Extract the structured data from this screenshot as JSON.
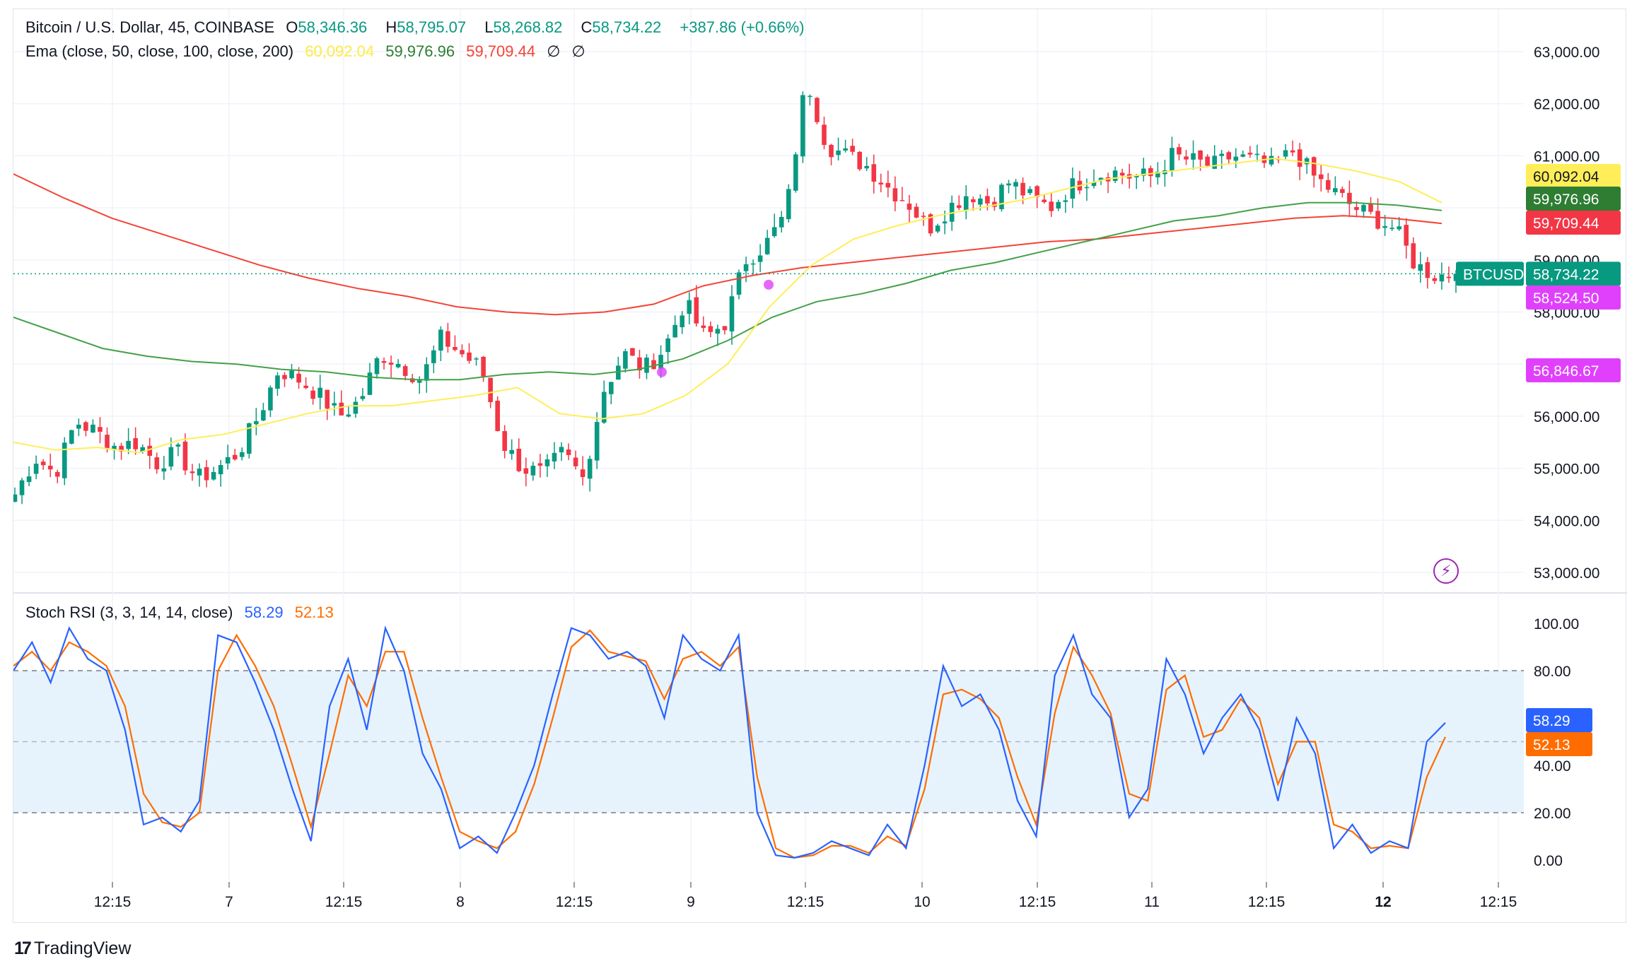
{
  "legend": {
    "symbol": "Bitcoin / U.S. Dollar, 45, COINBASE",
    "o_label": "O",
    "o_value": "58,346.36",
    "h_label": "H",
    "h_value": "58,795.07",
    "l_label": "L",
    "l_value": "58,268.82",
    "c_label": "C",
    "c_value": "58,734.22",
    "change": "+387.86 (+0.66%)",
    "ema_label": "Ema (close, 50, close, 100, close, 200)",
    "ema50_value": "60,092.04",
    "ema100_value": "59,976.96",
    "ema200_value": "59,709.44",
    "null1": "∅",
    "null2": "∅",
    "stoch_label": "Stoch RSI (3, 3, 14, 14, close)",
    "stoch_k_value": "58.29",
    "stoch_d_value": "52.13"
  },
  "branding": {
    "logo_text": "TradingView",
    "logo_mark": "17"
  },
  "colors": {
    "up": "#089981",
    "down": "#f23645",
    "ema50": "#ffee58",
    "ema100": "#43a047",
    "ema200": "#f44336",
    "stoch_k": "#2962ff",
    "stoch_d": "#ff6d00",
    "marker": "#e040fb",
    "band": "#e3f2fd"
  },
  "chart_data": [
    {
      "type": "candlestick",
      "title": "Bitcoin / U.S. Dollar, 45, COINBASE",
      "ylim": [
        52700,
        63300
      ],
      "y_ticks": [
        "63,000.00",
        "62,000.00",
        "61,000.00",
        "60,000.00",
        "59,000.00",
        "58,000.00",
        "57,000.00",
        "56,000.00",
        "55,000.00",
        "54,000.00",
        "53,000.00"
      ],
      "x_ticks": [
        "12:15",
        "7",
        "12:15",
        "8",
        "12:15",
        "9",
        "12:15",
        "10",
        "12:15",
        "11",
        "12:15",
        "12",
        "12:15"
      ],
      "x_ticks_bold": [
        "12"
      ],
      "close_anchors": [
        54500,
        55200,
        54900,
        55900,
        55700,
        55400,
        55500,
        55100,
        55300,
        54800,
        55000,
        55300,
        56000,
        56900,
        56700,
        56400,
        56000,
        56300,
        57200,
        57000,
        56700,
        57500,
        57200,
        56900,
        55500,
        55000,
        54900,
        55300,
        54800,
        56500,
        57200,
        56900,
        57300,
        58200,
        57500,
        57800,
        59000,
        59300,
        59900,
        62500,
        61200,
        61000,
        60800,
        60400,
        60100,
        59600,
        60000,
        60300,
        60100,
        60500,
        60200,
        60000,
        60400,
        60600,
        60700,
        60600,
        60600,
        61000,
        60900,
        60800,
        61000,
        60900,
        60800,
        61100,
        60600,
        60300,
        60000,
        59800,
        59600,
        58900,
        58700,
        58734
      ],
      "last_price_label": "BTCUSD",
      "last_price": "58,734.22",
      "marker_label": "58,524.50",
      "marker_label2": "56,846.67",
      "ema50": [
        55500,
        55350,
        55400,
        55300,
        55550,
        55650,
        55850,
        56050,
        56200,
        56200,
        56300,
        56400,
        56550,
        56050,
        55950,
        56050,
        56400,
        57000,
        58100,
        58900,
        59400,
        59650,
        59850,
        60000,
        60150,
        60350,
        60550,
        60650,
        60750,
        60850,
        60950,
        60850,
        60700,
        60500,
        60100
      ],
      "ema100": [
        57900,
        57600,
        57300,
        57150,
        57050,
        57000,
        56900,
        56850,
        56750,
        56700,
        56700,
        56800,
        56850,
        56800,
        56900,
        57100,
        57450,
        57900,
        58200,
        58350,
        58550,
        58800,
        58950,
        59150,
        59350,
        59550,
        59750,
        59850,
        60000,
        60100,
        60100,
        60050,
        59950
      ],
      "ema200": [
        60650,
        60200,
        59800,
        59500,
        59200,
        58900,
        58650,
        58450,
        58300,
        58100,
        58000,
        57950,
        58000,
        58150,
        58500,
        58700,
        58850,
        58950,
        59050,
        59150,
        59250,
        59350,
        59400,
        59500,
        59600,
        59700,
        59800,
        59850,
        59800,
        59700
      ]
    },
    {
      "type": "line",
      "title": "Stoch RSI (3, 3, 14, 14, close)",
      "ylim": [
        -8,
        108
      ],
      "y_ticks": [
        "100.00",
        "80.00",
        "40.00",
        "20.00",
        "0.00"
      ],
      "bands": [
        20,
        50,
        80
      ],
      "series": [
        {
          "name": "58.29",
          "values": [
            80,
            92,
            75,
            98,
            85,
            80,
            55,
            15,
            18,
            12,
            25,
            95,
            92,
            75,
            55,
            30,
            8,
            65,
            85,
            55,
            98,
            80,
            45,
            30,
            5,
            10,
            3,
            20,
            40,
            70,
            98,
            95,
            85,
            88,
            82,
            60,
            95,
            85,
            80,
            95,
            20,
            2,
            1,
            3,
            8,
            5,
            2,
            15,
            5,
            40,
            82,
            65,
            70,
            55,
            25,
            10,
            78,
            95,
            70,
            60,
            18,
            30,
            85,
            70,
            45,
            60,
            70,
            55,
            25,
            60,
            45,
            5,
            15,
            3,
            8,
            5,
            50,
            58
          ]
        },
        {
          "name": "52.13",
          "values": [
            82,
            88,
            80,
            92,
            88,
            82,
            65,
            28,
            16,
            14,
            20,
            80,
            95,
            82,
            65,
            40,
            14,
            45,
            78,
            65,
            88,
            88,
            60,
            35,
            12,
            8,
            5,
            12,
            32,
            60,
            90,
            97,
            88,
            86,
            84,
            68,
            85,
            88,
            82,
            90,
            35,
            5,
            1,
            2,
            6,
            6,
            3,
            10,
            6,
            30,
            70,
            72,
            68,
            60,
            35,
            15,
            62,
            90,
            78,
            62,
            28,
            25,
            72,
            78,
            52,
            55,
            68,
            60,
            32,
            50,
            50,
            15,
            12,
            5,
            6,
            5,
            35,
            52
          ]
        }
      ]
    }
  ]
}
